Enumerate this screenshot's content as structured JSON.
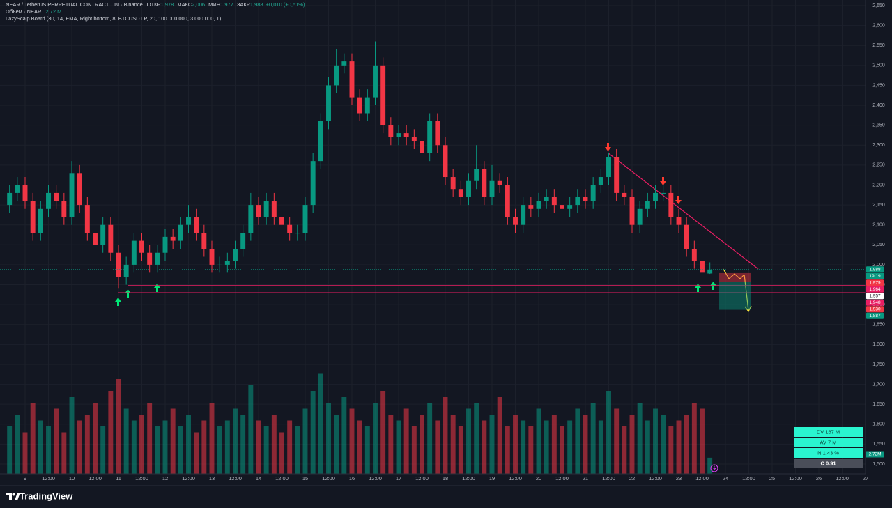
{
  "chart_data": {
    "type": "candlestick",
    "header": {
      "symbol": "NEAR / TetherUS PERPETUAL CONTRACT · 1ч · Binance",
      "open_label": "ОТКР",
      "open": "1,978",
      "high_label": "МАКС",
      "high": "2,006",
      "low_label": "МИН",
      "low": "1,977",
      "close_label": "ЗАКР",
      "close": "1,988",
      "change": "+0,010 (+0,51%)"
    },
    "volume_legend": {
      "label": "Объём · NEAR",
      "value": "2,72 M"
    },
    "indicator": "LazyScalp Board (30, 14, EMA, Right bottom, 8, BTCUSDT.P, 20, 100 000 000, 3 000 000, 1)",
    "up_color": "#089981",
    "down_color": "#f23645",
    "grid": true,
    "xlim": [
      -12,
      432
    ],
    "ylim": [
      1.5,
      2.65
    ],
    "xticks": [
      {
        "value": 0,
        "label": "9"
      },
      {
        "value": 12,
        "label": "12:00"
      },
      {
        "value": 24,
        "label": "10"
      },
      {
        "value": 36,
        "label": "12:00"
      },
      {
        "value": 48,
        "label": "11"
      },
      {
        "value": 60,
        "label": "12:00"
      },
      {
        "value": 72,
        "label": "12"
      },
      {
        "value": 84,
        "label": "12:00"
      },
      {
        "value": 96,
        "label": "13"
      },
      {
        "value": 108,
        "label": "12:00"
      },
      {
        "value": 120,
        "label": "14"
      },
      {
        "value": 132,
        "label": "12:00"
      },
      {
        "value": 144,
        "label": "15"
      },
      {
        "value": 156,
        "label": "12:00"
      },
      {
        "value": 168,
        "label": "16"
      },
      {
        "value": 180,
        "label": "12:00"
      },
      {
        "value": 192,
        "label": "17"
      },
      {
        "value": 204,
        "label": "12:00"
      },
      {
        "value": 216,
        "label": "18"
      },
      {
        "value": 228,
        "label": "12:00"
      },
      {
        "value": 240,
        "label": "19"
      },
      {
        "value": 252,
        "label": "12:00"
      },
      {
        "value": 264,
        "label": "20"
      },
      {
        "value": 276,
        "label": "12:00"
      },
      {
        "value": 288,
        "label": "21"
      },
      {
        "value": 300,
        "label": "12:00"
      },
      {
        "value": 312,
        "label": "22"
      },
      {
        "value": 324,
        "label": "12:00"
      },
      {
        "value": 336,
        "label": "23"
      },
      {
        "value": 348,
        "label": "12:00"
      },
      {
        "value": 360,
        "label": "24"
      },
      {
        "value": 372,
        "label": "12:00"
      },
      {
        "value": 384,
        "label": "25"
      },
      {
        "value": 396,
        "label": "12:00"
      },
      {
        "value": 408,
        "label": "26"
      },
      {
        "value": 420,
        "label": "12:00"
      },
      {
        "value": 432,
        "label": "27"
      }
    ],
    "yticks": [
      {
        "value": 2.65,
        "label": "2,650"
      },
      {
        "value": 2.6,
        "label": "2,600"
      },
      {
        "value": 2.55,
        "label": "2,550"
      },
      {
        "value": 2.5,
        "label": "2,500"
      },
      {
        "value": 2.45,
        "label": "2,450"
      },
      {
        "value": 2.4,
        "label": "2,400"
      },
      {
        "value": 2.35,
        "label": "2,350"
      },
      {
        "value": 2.3,
        "label": "2,300"
      },
      {
        "value": 2.25,
        "label": "2,250"
      },
      {
        "value": 2.2,
        "label": "2,200"
      },
      {
        "value": 2.15,
        "label": "2,150"
      },
      {
        "value": 2.1,
        "label": "2,100"
      },
      {
        "value": 2.05,
        "label": "2,050"
      },
      {
        "value": 2.0,
        "label": "2,000"
      },
      {
        "value": 1.95,
        "label": "1,950"
      },
      {
        "value": 1.9,
        "label": "1,900"
      },
      {
        "value": 1.85,
        "label": "1,850"
      },
      {
        "value": 1.8,
        "label": "1,800"
      },
      {
        "value": 1.75,
        "label": "1,750"
      },
      {
        "value": 1.7,
        "label": "1,700"
      },
      {
        "value": 1.65,
        "label": "1,650"
      },
      {
        "value": 1.6,
        "label": "1,600"
      },
      {
        "value": 1.55,
        "label": "1,550"
      },
      {
        "value": 1.5,
        "label": "1,500"
      }
    ],
    "x": [
      -8,
      -4,
      0,
      4,
      8,
      12,
      16,
      20,
      24,
      28,
      32,
      36,
      40,
      44,
      48,
      52,
      56,
      60,
      64,
      68,
      72,
      76,
      80,
      84,
      88,
      92,
      96,
      100,
      104,
      108,
      112,
      116,
      120,
      124,
      128,
      132,
      136,
      140,
      144,
      148,
      152,
      156,
      160,
      164,
      168,
      172,
      176,
      180,
      184,
      188,
      192,
      196,
      200,
      204,
      208,
      212,
      216,
      220,
      224,
      228,
      232,
      236,
      240,
      244,
      248,
      252,
      256,
      260,
      264,
      268,
      272,
      276,
      280,
      284,
      288,
      292,
      296,
      300,
      304,
      308,
      312,
      316,
      320,
      324,
      328,
      332,
      336,
      340,
      344,
      348,
      352
    ],
    "open": [
      2.15,
      2.18,
      2.2,
      2.16,
      2.08,
      2.14,
      2.18,
      2.16,
      2.12,
      2.23,
      2.15,
      2.08,
      2.05,
      2.1,
      2.03,
      1.97,
      2.0,
      2.06,
      2.03,
      2.0,
      2.03,
      2.07,
      2.06,
      2.1,
      2.12,
      2.08,
      2.04,
      2.0,
      2.0,
      2.01,
      2.04,
      2.08,
      2.15,
      2.12,
      2.16,
      2.12,
      2.1,
      2.08,
      2.08,
      2.15,
      2.26,
      2.36,
      2.45,
      2.5,
      2.51,
      2.42,
      2.38,
      2.42,
      2.5,
      2.35,
      2.32,
      2.33,
      2.32,
      2.31,
      2.28,
      2.36,
      2.3,
      2.22,
      2.19,
      2.17,
      2.21,
      2.24,
      2.17,
      2.21,
      2.2,
      2.12,
      2.1,
      2.15,
      2.14,
      2.16,
      2.17,
      2.15,
      2.14,
      2.15,
      2.17,
      2.16,
      2.2,
      2.22,
      2.27,
      2.18,
      2.17,
      2.1,
      2.14,
      2.16,
      2.18,
      2.18,
      2.12,
      2.1,
      2.04,
      2.01,
      1.978
    ],
    "high": [
      2.2,
      2.22,
      2.22,
      2.18,
      2.16,
      2.2,
      2.2,
      2.18,
      2.26,
      2.25,
      2.17,
      2.1,
      2.12,
      2.12,
      2.05,
      2.02,
      2.08,
      2.08,
      2.05,
      2.05,
      2.09,
      2.09,
      2.12,
      2.15,
      2.14,
      2.1,
      2.06,
      2.02,
      2.03,
      2.06,
      2.1,
      2.18,
      2.17,
      2.18,
      2.18,
      2.14,
      2.12,
      2.1,
      2.17,
      2.28,
      2.38,
      2.47,
      2.54,
      2.53,
      2.53,
      2.44,
      2.44,
      2.56,
      2.52,
      2.37,
      2.35,
      2.35,
      2.34,
      2.33,
      2.38,
      2.38,
      2.32,
      2.24,
      2.21,
      2.23,
      2.3,
      2.26,
      2.25,
      2.23,
      2.22,
      2.14,
      2.17,
      2.17,
      2.18,
      2.19,
      2.19,
      2.17,
      2.17,
      2.19,
      2.19,
      2.22,
      2.24,
      2.28,
      2.29,
      2.2,
      2.19,
      2.16,
      2.18,
      2.2,
      2.2,
      2.2,
      2.14,
      2.12,
      2.06,
      2.03,
      2.006
    ],
    "low": [
      2.13,
      2.16,
      2.14,
      2.06,
      2.06,
      2.12,
      2.14,
      2.1,
      2.1,
      2.13,
      2.06,
      2.03,
      2.03,
      2.01,
      1.94,
      1.95,
      1.98,
      2.01,
      1.98,
      1.98,
      2.01,
      2.04,
      2.04,
      2.08,
      2.06,
      2.02,
      1.98,
      1.98,
      1.98,
      1.99,
      2.02,
      2.06,
      2.1,
      2.1,
      2.1,
      2.08,
      2.06,
      2.06,
      2.06,
      2.13,
      2.24,
      2.34,
      2.43,
      2.48,
      2.4,
      2.36,
      2.36,
      2.4,
      2.33,
      2.3,
      2.3,
      2.3,
      2.29,
      2.26,
      2.26,
      2.28,
      2.2,
      2.17,
      2.15,
      2.15,
      2.19,
      2.15,
      2.15,
      2.18,
      2.1,
      2.08,
      2.08,
      2.12,
      2.12,
      2.14,
      2.13,
      2.12,
      2.12,
      2.13,
      2.14,
      2.14,
      2.18,
      2.2,
      2.16,
      2.15,
      2.08,
      2.08,
      2.12,
      2.14,
      2.16,
      2.1,
      2.08,
      2.02,
      1.99,
      1.96,
      1.977
    ],
    "close": [
      2.18,
      2.2,
      2.16,
      2.08,
      2.14,
      2.18,
      2.16,
      2.12,
      2.23,
      2.15,
      2.08,
      2.05,
      2.1,
      2.03,
      1.97,
      2.0,
      2.06,
      2.03,
      2.0,
      2.03,
      2.07,
      2.06,
      2.1,
      2.12,
      2.08,
      2.04,
      2.0,
      2.0,
      2.01,
      2.04,
      2.08,
      2.15,
      2.12,
      2.16,
      2.12,
      2.1,
      2.08,
      2.08,
      2.15,
      2.26,
      2.36,
      2.45,
      2.5,
      2.51,
      2.42,
      2.38,
      2.42,
      2.5,
      2.35,
      2.32,
      2.33,
      2.32,
      2.31,
      2.28,
      2.36,
      2.3,
      2.22,
      2.19,
      2.17,
      2.21,
      2.24,
      2.17,
      2.21,
      2.2,
      2.12,
      2.1,
      2.15,
      2.14,
      2.16,
      2.17,
      2.15,
      2.14,
      2.15,
      2.17,
      2.16,
      2.2,
      2.22,
      2.27,
      2.18,
      2.17,
      2.1,
      2.14,
      2.16,
      2.18,
      2.18,
      2.12,
      2.1,
      2.04,
      2.01,
      1.98,
      1.988
    ],
    "volume": [
      8,
      10,
      7,
      12,
      9,
      8,
      11,
      7,
      13,
      9,
      10,
      12,
      8,
      14,
      16,
      11,
      9,
      10,
      12,
      8,
      9,
      11,
      8,
      10,
      7,
      9,
      12,
      8,
      9,
      11,
      10,
      15,
      9,
      8,
      10,
      7,
      9,
      8,
      11,
      14,
      17,
      12,
      10,
      13,
      11,
      9,
      8,
      12,
      14,
      10,
      9,
      11,
      8,
      10,
      12,
      9,
      13,
      10,
      8,
      11,
      12,
      9,
      10,
      13,
      8,
      10,
      9,
      8,
      11,
      9,
      10,
      8,
      9,
      11,
      10,
      12,
      9,
      14,
      11,
      8,
      10,
      12,
      9,
      11,
      10,
      8,
      9,
      10,
      12,
      11,
      2.72
    ],
    "volume_tag": "2,72M",
    "countdown": "19:19",
    "price_tags": [
      {
        "value": 1.988,
        "label": "1,988",
        "color": "#089981"
      },
      {
        "value": 1.979,
        "label": "1,979",
        "color": "#f23645"
      },
      {
        "value": 1.964,
        "label": "1,964",
        "color": "#e91e63"
      },
      {
        "value": 1.957,
        "label": "1,957",
        "color": "#ffffff"
      },
      {
        "value": 1.948,
        "label": "1,948",
        "color": "#e91e63"
      },
      {
        "value": 1.93,
        "label": "1,930",
        "color": "#f23645"
      },
      {
        "value": 1.887,
        "label": "1,887",
        "color": "#089981"
      }
    ],
    "board": [
      "DV 167 M",
      "AV 7 M",
      "N 1.43 %",
      "C  0.91"
    ]
  }
}
